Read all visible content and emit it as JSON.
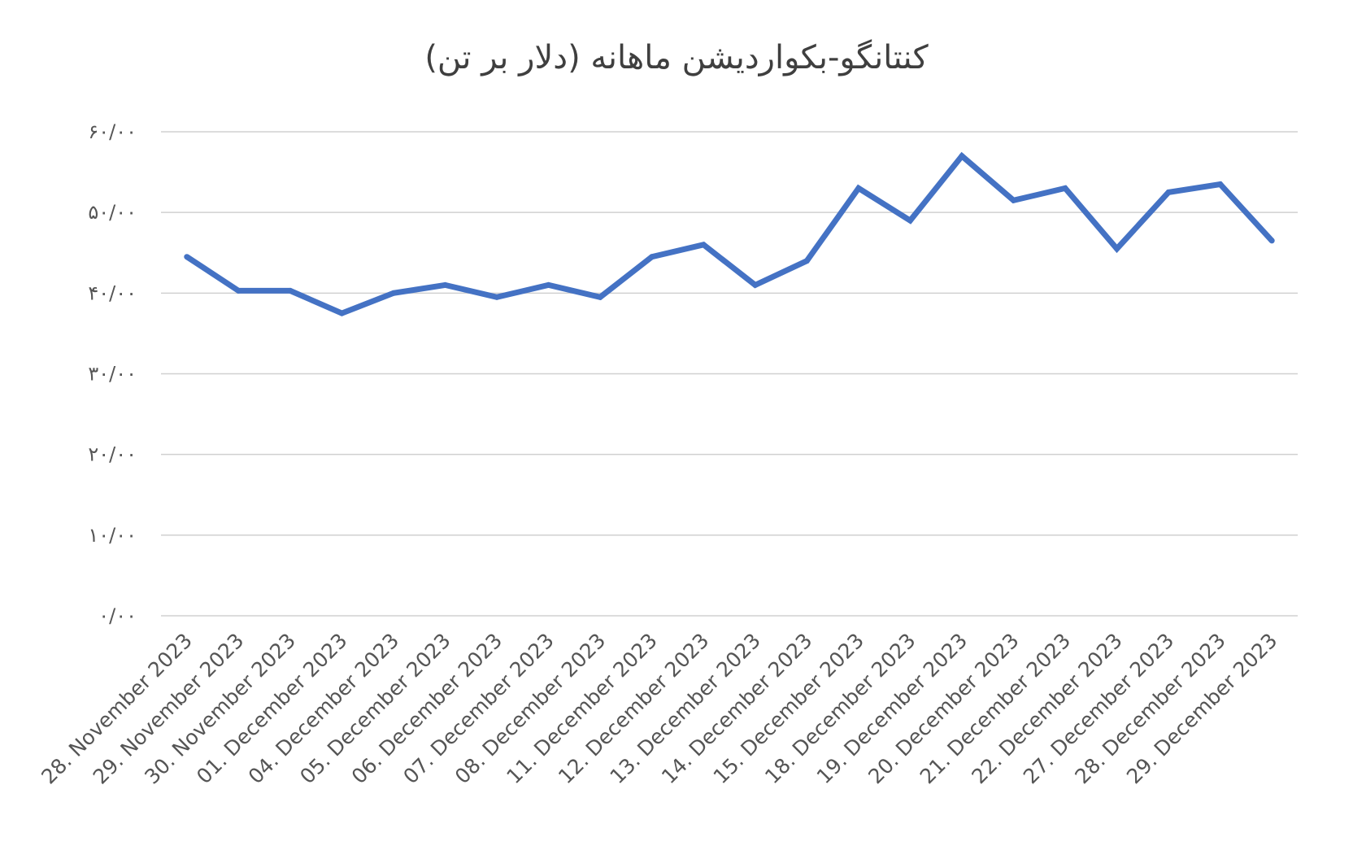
{
  "chart_data": {
    "type": "line",
    "title": "کنتانگو-بکواردیشن ماهانه (دلار بر تن)",
    "xlabel": "",
    "ylabel": "",
    "ylim": [
      0,
      60
    ],
    "yticks": [
      0,
      10,
      20,
      30,
      40,
      50,
      60
    ],
    "ytick_labels": [
      "۰/۰۰",
      "۱۰/۰۰",
      "۲۰/۰۰",
      "۳۰/۰۰",
      "۴۰/۰۰",
      "۵۰/۰۰",
      "۶۰/۰۰"
    ],
    "grid": true,
    "legend": "none",
    "line_color": "#4472c4",
    "categories": [
      "28. November 2023",
      "29. November 2023",
      "30. November 2023",
      "01. December 2023",
      "04. December 2023",
      "05. December 2023",
      "06. December 2023",
      "07. December 2023",
      "08. December 2023",
      "11. December 2023",
      "12. December 2023",
      "13. December 2023",
      "14. December 2023",
      "15. December 2023",
      "18. December 2023",
      "19. December 2023",
      "20. December 2023",
      "21. December 2023",
      "22. December 2023",
      "27. December 2023",
      "28. December 2023",
      "29. December 2023"
    ],
    "series": [
      {
        "values": [
          44.5,
          40.3,
          40.3,
          37.5,
          40.0,
          41.0,
          39.5,
          41.0,
          39.5,
          44.5,
          46.0,
          41.0,
          44.0,
          53.0,
          49.0,
          57.0,
          51.5,
          53.0,
          45.5,
          52.5,
          53.5,
          46.5
        ]
      }
    ]
  }
}
